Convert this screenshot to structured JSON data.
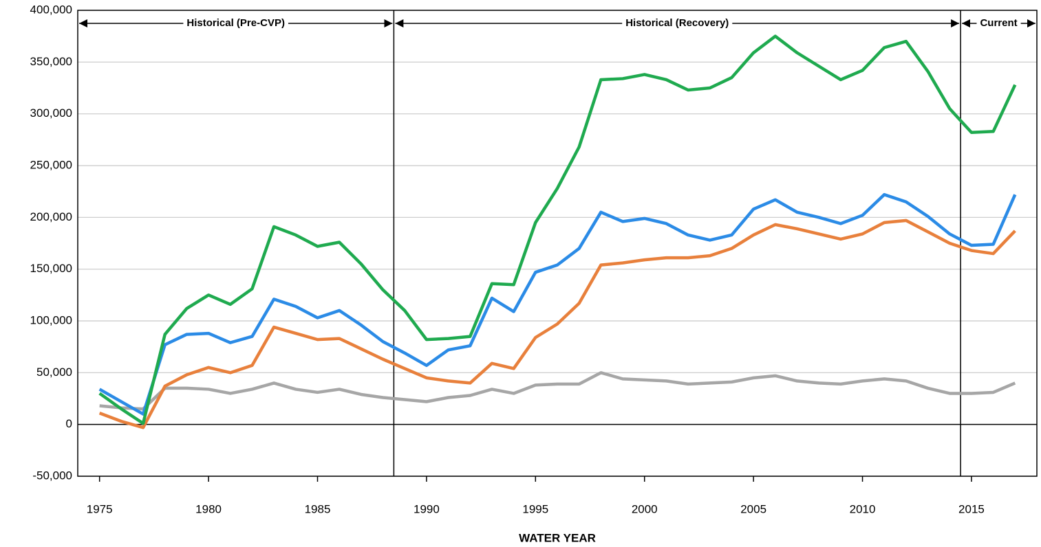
{
  "chart_data": {
    "type": "line",
    "x_label": "WATER YEAR",
    "x": [
      1975,
      1976,
      1977,
      1978,
      1979,
      1980,
      1981,
      1982,
      1983,
      1984,
      1985,
      1986,
      1987,
      1988,
      1989,
      1990,
      1991,
      1992,
      1993,
      1994,
      1995,
      1996,
      1997,
      1998,
      1999,
      2000,
      2001,
      2002,
      2003,
      2004,
      2005,
      2006,
      2007,
      2008,
      2009,
      2010,
      2011,
      2012,
      2013,
      2014,
      2015,
      2016,
      2017
    ],
    "series": [
      {
        "color": "#1faa4f",
        "values": [
          30000,
          15000,
          1000,
          87000,
          112000,
          125000,
          116000,
          131000,
          191000,
          183000,
          172000,
          176000,
          155000,
          130000,
          110000,
          82000,
          83000,
          85000,
          136000,
          135000,
          195000,
          228000,
          268000,
          333000,
          334000,
          338000,
          333000,
          323000,
          325000,
          335000,
          359000,
          375000,
          359000,
          346000,
          333000,
          342000,
          364000,
          370000,
          341000,
          305000,
          282000,
          283000,
          328000
        ]
      },
      {
        "color": "#2b8be6",
        "values": [
          34000,
          22000,
          10000,
          77000,
          87000,
          88000,
          79000,
          85000,
          121000,
          114000,
          103000,
          110000,
          96000,
          80000,
          69000,
          57000,
          72000,
          76000,
          122000,
          109000,
          147000,
          154000,
          170000,
          205000,
          196000,
          199000,
          194000,
          183000,
          178000,
          183000,
          208000,
          217000,
          205000,
          200000,
          194000,
          202000,
          222000,
          215000,
          201000,
          184000,
          173000,
          174000,
          222000
        ]
      },
      {
        "color": "#e8803c",
        "values": [
          11000,
          3000,
          -3000,
          37000,
          48000,
          55000,
          50000,
          57000,
          94000,
          88000,
          82000,
          83000,
          73000,
          63000,
          54000,
          45000,
          42000,
          40000,
          59000,
          54000,
          84000,
          97000,
          117000,
          154000,
          156000,
          159000,
          161000,
          161000,
          163000,
          170000,
          183000,
          193000,
          189000,
          184000,
          179000,
          184000,
          195000,
          197000,
          186000,
          175000,
          168000,
          165000,
          187000
        ]
      },
      {
        "color": "#a6a6a6",
        "values": [
          18000,
          16000,
          15000,
          35000,
          35000,
          34000,
          30000,
          34000,
          40000,
          34000,
          31000,
          34000,
          29000,
          26000,
          24000,
          22000,
          26000,
          28000,
          34000,
          30000,
          38000,
          39000,
          39000,
          50000,
          44000,
          43000,
          42000,
          39000,
          40000,
          41000,
          45000,
          47000,
          42000,
          40000,
          39000,
          42000,
          44000,
          42000,
          35000,
          30000,
          30000,
          31000,
          40000
        ]
      }
    ],
    "periods": [
      {
        "label": "Historical (Pre-CVP)",
        "start": 1974,
        "end": 1988.5
      },
      {
        "label": "Historical (Recovery)",
        "start": 1988.5,
        "end": 2014.5
      },
      {
        "label": "Current",
        "start": 2014.5,
        "end": 2018
      }
    ],
    "xlim": [
      1974,
      2018
    ],
    "xticks": [
      1975,
      1980,
      1985,
      1990,
      1995,
      2000,
      2005,
      2010,
      2015
    ],
    "ylim": [
      -50000,
      400000
    ],
    "yticks": [
      {
        "value": -50000,
        "label": "-50,000"
      },
      0,
      {
        "value": 50000,
        "label": "50,000"
      },
      {
        "value": 100000,
        "label": "100,000"
      },
      {
        "value": 150000,
        "label": "150,000"
      },
      {
        "value": 200000,
        "label": "200,000"
      },
      {
        "value": 250000,
        "label": "250,000"
      },
      {
        "value": 300000,
        "label": "300,000"
      },
      {
        "value": 350000,
        "label": "350,000"
      },
      {
        "value": 400000,
        "label": "400,000"
      }
    ],
    "grid": true
  }
}
